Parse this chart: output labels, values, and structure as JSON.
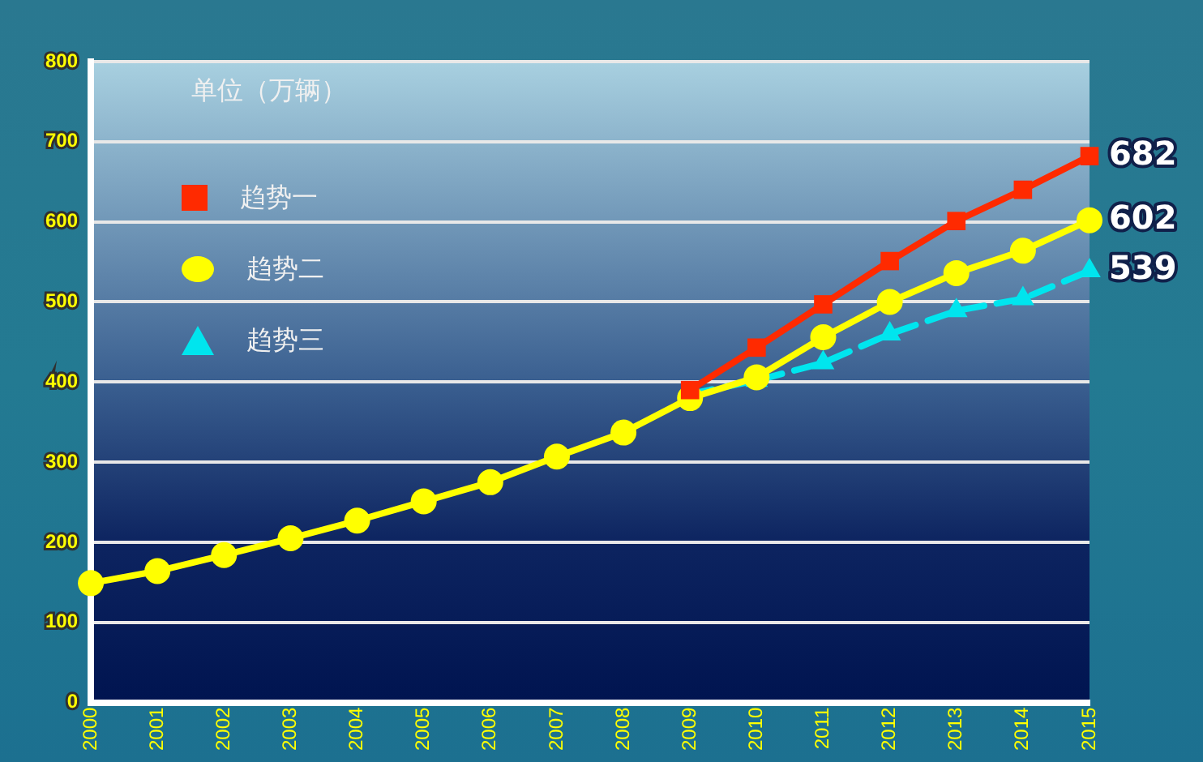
{
  "chart_data": {
    "type": "line",
    "categories": [
      "2000",
      "2001",
      "2002",
      "2003",
      "2004",
      "2005",
      "2006",
      "2007",
      "2008",
      "2009",
      "2010",
      "2011",
      "2012",
      "2013",
      "2014",
      "2015"
    ],
    "series": [
      {
        "name": "趋势一",
        "color": "#ff2a00",
        "marker": "square",
        "line_style": "solid",
        "values": [
          null,
          null,
          null,
          null,
          null,
          null,
          null,
          null,
          null,
          390,
          443,
          497,
          551,
          601,
          640,
          682
        ],
        "value_labels": [
          null,
          null,
          null,
          null,
          null,
          null,
          null,
          null,
          null,
          null,
          null,
          null,
          null,
          null,
          null,
          "682"
        ]
      },
      {
        "name": "趋势二",
        "color": "#ffff00",
        "marker": "circle",
        "line_style": "solid",
        "values": [
          149,
          164,
          184,
          205,
          227,
          251,
          275,
          307,
          337,
          380,
          406,
          456,
          500,
          536,
          564,
          602
        ],
        "value_labels": [
          null,
          null,
          null,
          null,
          null,
          null,
          null,
          null,
          null,
          null,
          null,
          null,
          null,
          null,
          null,
          "602"
        ]
      },
      {
        "name": "趋势三",
        "color": "#00e5ee",
        "marker": "triangle",
        "line_style": "dashed",
        "values": [
          null,
          null,
          null,
          null,
          null,
          null,
          null,
          null,
          null,
          385,
          402,
          424,
          460,
          489,
          504,
          539
        ],
        "value_labels": [
          null,
          null,
          null,
          null,
          null,
          null,
          null,
          null,
          null,
          null,
          null,
          null,
          null,
          null,
          null,
          "539"
        ]
      }
    ],
    "ylim": [
      0,
      800
    ],
    "yticks": [
      0,
      100,
      200,
      300,
      400,
      500,
      600,
      700,
      800
    ],
    "grid": "y",
    "legend": "top left",
    "annotations": [
      "单位（万辆）"
    ]
  }
}
